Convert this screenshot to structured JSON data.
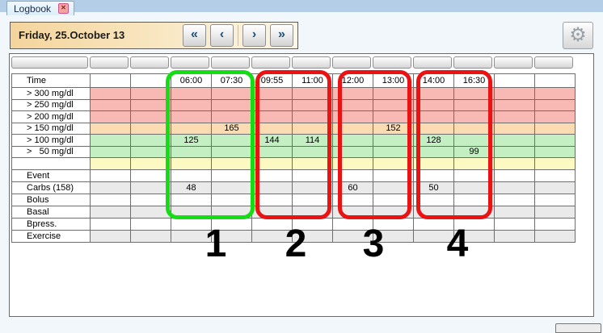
{
  "tab": {
    "label": "Logbook"
  },
  "icons": {
    "close": "✕",
    "gear": "⚙"
  },
  "toolbar": {
    "date_label": "Friday, 25.October 13",
    "nav_buttons": [
      {
        "name": "first-day",
        "glyph": "«"
      },
      {
        "name": "prev-day",
        "glyph": "‹"
      },
      {
        "name": "next-day",
        "glyph": "›"
      },
      {
        "name": "last-day",
        "glyph": "»"
      }
    ]
  },
  "logbook": {
    "rows": [
      {
        "label": "Time",
        "band": "white",
        "cells": [
          "",
          "",
          "06:00",
          "07:30",
          "09:55",
          "11:00",
          "12:00",
          "13:00",
          "14:00",
          "16:30",
          "",
          ""
        ]
      },
      {
        "label": "> 300 mg/dl",
        "band": "pink",
        "cells": [
          "",
          "",
          "",
          "",
          "",
          "",
          "",
          "",
          "",
          "",
          "",
          ""
        ]
      },
      {
        "label": "> 250 mg/dl",
        "band": "pink",
        "cells": [
          "",
          "",
          "",
          "",
          "",
          "",
          "",
          "",
          "",
          "",
          "",
          ""
        ]
      },
      {
        "label": "> 200 mg/dl",
        "band": "pink",
        "cells": [
          "",
          "",
          "",
          "",
          "",
          "",
          "",
          "",
          "",
          "",
          "",
          ""
        ]
      },
      {
        "label": "> 150 mg/dl",
        "band": "orange",
        "cells": [
          "",
          "",
          "",
          "165",
          "",
          "",
          "",
          "152",
          "",
          "",
          "",
          ""
        ]
      },
      {
        "label": "> 100 mg/dl",
        "band": "green",
        "cells": [
          "",
          "",
          "125",
          "",
          "144",
          "114",
          "",
          "",
          "128",
          "",
          "",
          ""
        ]
      },
      {
        "label": ">   50 mg/dl",
        "band": "green",
        "cells": [
          "",
          "",
          "",
          "",
          "",
          "",
          "",
          "",
          "",
          "99",
          "",
          ""
        ]
      },
      {
        "label": "",
        "band": "yellow",
        "cells": [
          "",
          "",
          "",
          "",
          "",
          "",
          "",
          "",
          "",
          "",
          "",
          ""
        ]
      },
      {
        "label": "Event",
        "band": "white",
        "cells": [
          "",
          "",
          "",
          "",
          "",
          "",
          "",
          "",
          "",
          "",
          "",
          ""
        ]
      },
      {
        "label": "Carbs (158)",
        "band": "gray",
        "cells": [
          "",
          "",
          "48",
          "",
          "",
          "",
          "60",
          "",
          "50",
          "",
          "",
          ""
        ]
      },
      {
        "label": "Bolus",
        "band": "white",
        "cells": [
          "",
          "",
          "",
          "",
          "",
          "",
          "",
          "",
          "",
          "",
          "",
          ""
        ]
      },
      {
        "label": "Basal",
        "band": "gray",
        "cells": [
          "",
          "",
          "",
          "",
          "",
          "",
          "",
          "",
          "",
          "",
          "",
          ""
        ]
      },
      {
        "label": "Bpress.",
        "band": "white",
        "cells": [
          "",
          "",
          "",
          "",
          "",
          "",
          "",
          "",
          "",
          "",
          "",
          ""
        ]
      },
      {
        "label": "Exercise",
        "band": "gray",
        "cells": [
          "",
          "",
          "",
          "",
          "",
          "",
          "",
          "",
          "",
          "",
          "",
          ""
        ]
      }
    ]
  },
  "annotations": [
    {
      "number": "1",
      "color": "green"
    },
    {
      "number": "2",
      "color": "red"
    },
    {
      "number": "3",
      "color": "red"
    },
    {
      "number": "4",
      "color": "red"
    }
  ],
  "colors": {
    "band_pink": "#f8b8b4",
    "band_orange": "#fbdcb2",
    "band_green": "#c4efc2",
    "band_yellow": "#fcfac2",
    "band_gray": "#eaeaea",
    "band_white": "#ffffff",
    "annotation_green": "#15dd15",
    "annotation_red": "#ea1212"
  }
}
